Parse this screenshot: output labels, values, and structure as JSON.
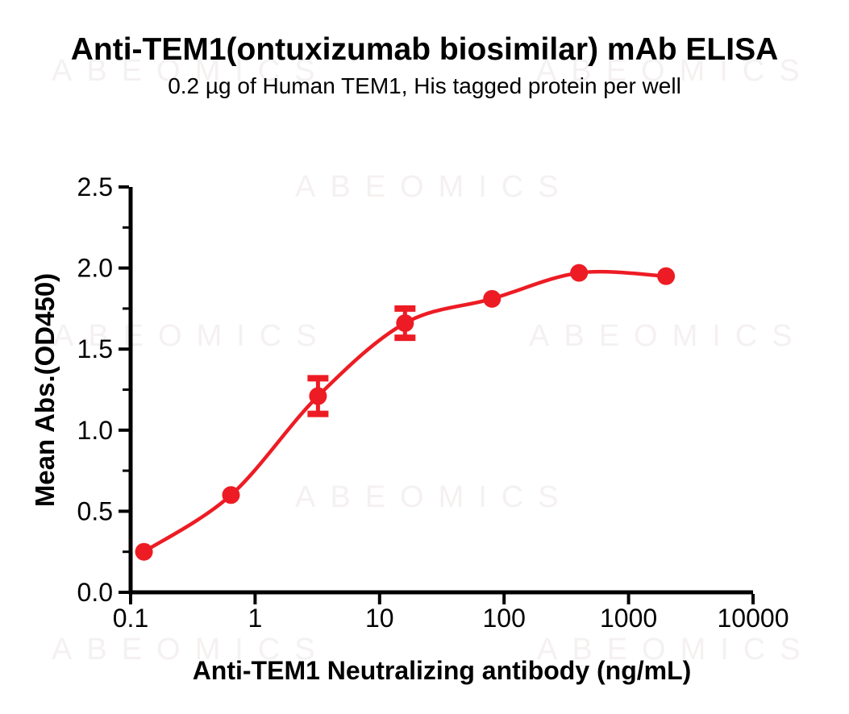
{
  "title": "Anti-TEM1(ontuxizumab biosimilar) mAb ELISA",
  "subtitle": "0.2 µg of Human TEM1, His tagged protein per well",
  "watermark": {
    "text": "ABEOMICS",
    "color": "#f5f1f1"
  },
  "chart_data": {
    "type": "scatter",
    "title": "Anti-TEM1(ontuxizumab biosimilar) mAb ELISA",
    "subtitle": "0.2 µg of Human TEM1, His tagged protein per well",
    "xlabel": "Anti-TEM1 Neutralizing antibody (ng/mL)",
    "ylabel": "Mean Abs.(OD450)",
    "xscale": "log",
    "xlim": [
      0.1,
      10000
    ],
    "ylim": [
      0,
      2.5
    ],
    "grid": false,
    "legend": "none",
    "x": [
      0.128,
      0.64,
      3.2,
      16,
      80,
      400,
      2000
    ],
    "y": [
      0.25,
      0.6,
      1.21,
      1.66,
      1.81,
      1.97,
      1.95
    ],
    "yerr": [
      0,
      0,
      0.11,
      0.09,
      0,
      0,
      0
    ],
    "fit": "4PL sigmoid curve through points",
    "xticks": {
      "values": [
        0.1,
        1,
        10,
        100,
        1000,
        10000
      ],
      "labels": [
        "0.1",
        "1",
        "10",
        "100",
        "1000",
        "10000"
      ]
    },
    "yticks": {
      "values": [
        0,
        0.5,
        1.0,
        1.5,
        2.0,
        2.5
      ],
      "labels": [
        "0.0",
        "0.5",
        "1.0",
        "1.5",
        "2.0",
        "2.5"
      ]
    },
    "yminor": [
      0.25,
      0.75,
      1.25,
      1.75,
      2.25
    ],
    "series_color": "#ed1c24",
    "axis_color": "#000000"
  }
}
